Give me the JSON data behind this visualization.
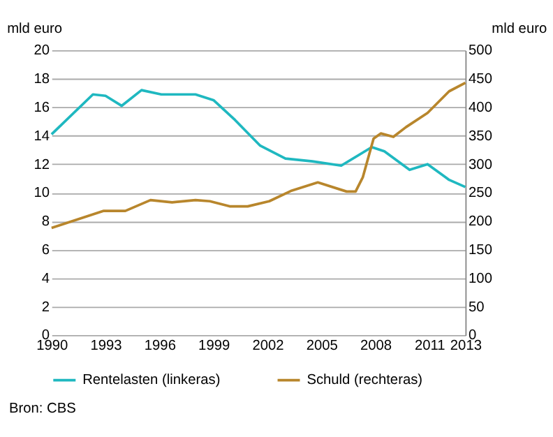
{
  "chart_data": {
    "type": "line",
    "ylabel": "mld euro",
    "y2label": "mld euro",
    "annotations": [
      "Bron: CBS"
    ],
    "xlim": [
      1990,
      2013
    ],
    "xticks": [
      1990,
      1993,
      1996,
      1999,
      2002,
      2005,
      2008,
      2011,
      2013
    ],
    "ylim": [
      0,
      20
    ],
    "yticks": [
      0,
      2,
      4,
      6,
      8,
      10,
      12,
      14,
      16,
      18,
      20
    ],
    "y2lim": [
      0,
      500
    ],
    "y2ticks": [
      0,
      50,
      100,
      150,
      200,
      250,
      300,
      350,
      400,
      450,
      500
    ],
    "grid": "y",
    "legend": "bottom",
    "marker": "none",
    "line_style": "solid",
    "series": [
      {
        "name": "Rentelasten (linkeras)",
        "color": "#1fb8c0",
        "x": [
          1990,
          1992.3,
          1993,
          1993.9,
          1995,
          1996.1,
          1997.5,
          1998,
          1999,
          2000.2,
          2001.6,
          2003,
          2004.5,
          2006.1,
          2007.8,
          2008.5,
          2009.9,
          2010.9,
          2012.1,
          2013
        ],
        "values": [
          14.1,
          16.9,
          16.8,
          16.1,
          17.2,
          16.9,
          16.9,
          16.9,
          16.5,
          15.1,
          13.3,
          12.4,
          12.2,
          11.9,
          13.2,
          12.9,
          11.6,
          12.0,
          10.9,
          10.4
        ]
      },
      {
        "name": "Schuld (rechteras)",
        "color": "#b8862c",
        "axis": "y2",
        "x": [
          1990,
          1992.9,
          1994.1,
          1995.5,
          1996.7,
          1998,
          1998.8,
          1999.9,
          2000.9,
          2002.1,
          2003.3,
          2004.8,
          2006.4,
          2006.9,
          2007.3,
          2007.9,
          2008.3,
          2009,
          2009.7,
          2010.9,
          2012.1,
          2013
        ],
        "values": [
          188,
          218,
          218,
          237,
          233,
          237,
          235,
          226,
          226,
          235,
          253,
          268,
          252,
          252,
          277,
          345,
          354,
          348,
          365,
          390,
          428,
          443
        ]
      }
    ]
  }
}
